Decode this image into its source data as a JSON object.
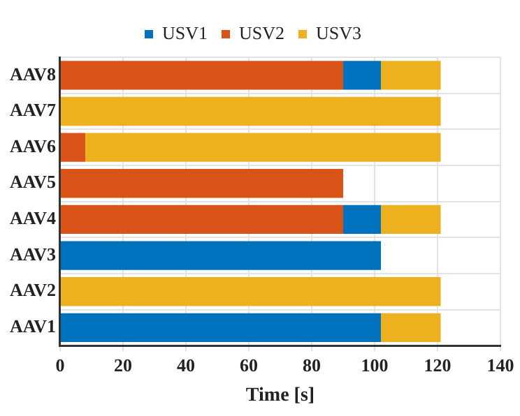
{
  "chart_data": {
    "type": "bar",
    "orientation": "horizontal",
    "xlabel": "Time [s]",
    "categories": [
      "AAV8",
      "AAV7",
      "AAV6",
      "AAV5",
      "AAV4",
      "AAV3",
      "AAV2",
      "AAV1"
    ],
    "series": [
      {
        "name": "USV1",
        "color": "#0072bd",
        "base": [
          90,
          null,
          null,
          null,
          90,
          0,
          null,
          0
        ],
        "values": [
          12,
          null,
          null,
          null,
          12,
          102,
          null,
          102
        ]
      },
      {
        "name": "USV2",
        "color": "#d95319",
        "base": [
          0,
          null,
          0,
          0,
          0,
          null,
          null,
          null
        ],
        "values": [
          90,
          null,
          8,
          90,
          90,
          null,
          null,
          null
        ]
      },
      {
        "name": "USV3",
        "color": "#edb120",
        "base": [
          102,
          0,
          8,
          null,
          102,
          null,
          0,
          102
        ],
        "values": [
          19,
          121,
          113,
          null,
          19,
          null,
          121,
          19
        ]
      }
    ],
    "xlim": [
      0,
      140
    ],
    "xticks": [
      0,
      20,
      40,
      60,
      80,
      100,
      120,
      140
    ],
    "grid": true,
    "legend": "top"
  }
}
